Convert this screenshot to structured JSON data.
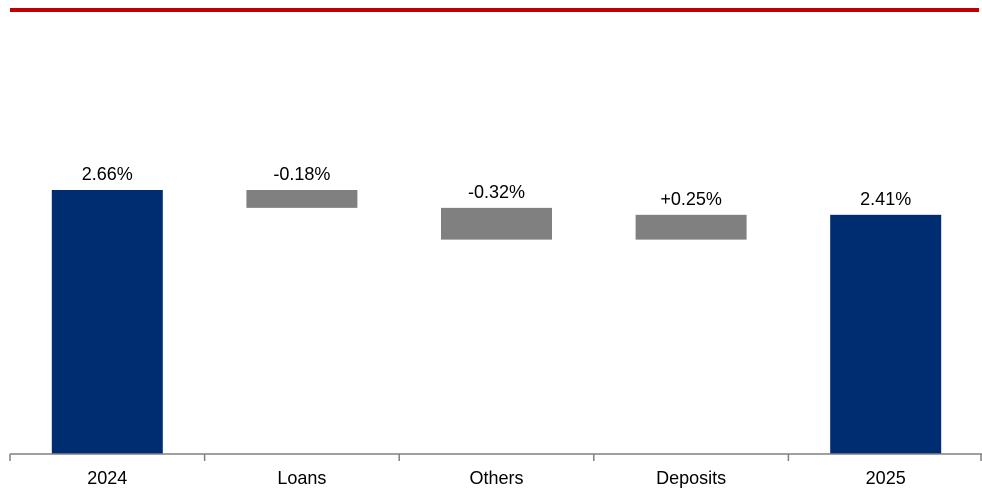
{
  "colors": {
    "top_rule": "#c00000",
    "total_bar": "#002d72",
    "delta_bar": "#808080",
    "axis": "#808080",
    "text": "#000000"
  },
  "chart_data": {
    "type": "bar",
    "subtype": "waterfall",
    "categories": [
      "2024",
      "Loans",
      "Others",
      "Deposits",
      "2025"
    ],
    "values": [
      2.66,
      -0.18,
      -0.32,
      0.25,
      2.41
    ],
    "bar_kinds": [
      "total",
      "delta",
      "delta",
      "delta",
      "total"
    ],
    "data_labels": [
      "2.66%",
      "-0.18%",
      "-0.32%",
      "+0.25%",
      "2.41%"
    ],
    "title": "",
    "xlabel": "",
    "ylabel": "",
    "ylim": [
      0,
      2.66
    ],
    "legend": "none",
    "grid": false
  }
}
